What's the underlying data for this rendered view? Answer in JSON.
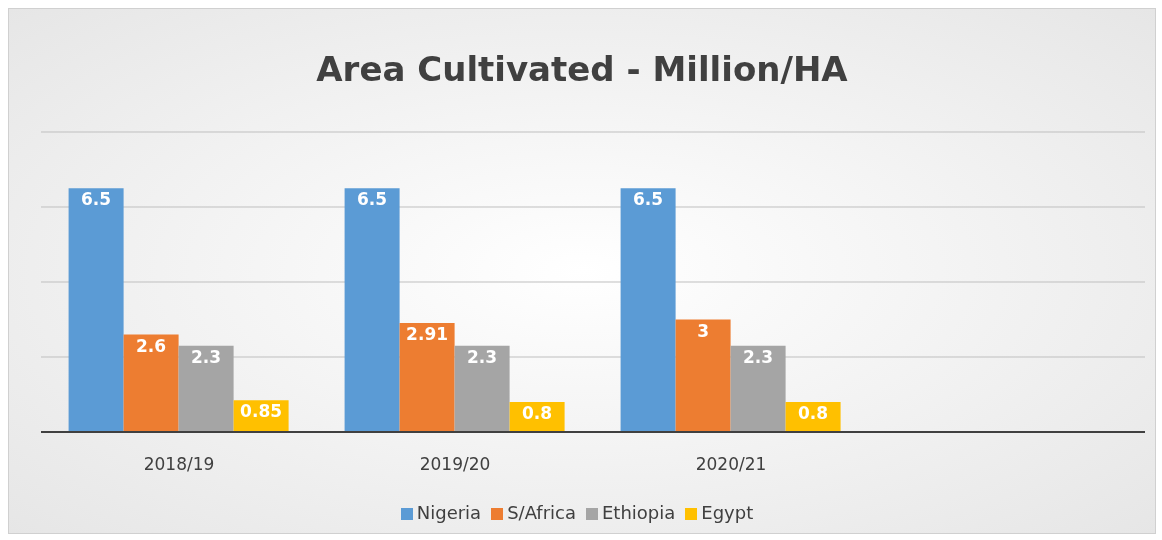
{
  "chart_data": {
    "type": "bar",
    "title": "Area Cultivated - Million/HA",
    "categories": [
      "2018/19",
      "2019/20",
      "2020/21",
      null
    ],
    "series": [
      {
        "name": "Nigeria",
        "color": "#5b9bd5",
        "values": [
          6.5,
          6.5,
          6.5,
          null
        ]
      },
      {
        "name": "S/Africa",
        "color": "#ed7d31",
        "values": [
          2.6,
          2.91,
          3,
          null
        ]
      },
      {
        "name": "Ethiopia",
        "color": "#a5a5a5",
        "values": [
          2.3,
          2.3,
          2.3,
          null
        ]
      },
      {
        "name": "Egypt",
        "color": "#ffc000",
        "values": [
          0.85,
          0.8,
          0.8,
          null
        ]
      }
    ],
    "ylim": [
      0,
      8
    ],
    "yticks": [
      {
        "value": 0,
        "label": null
      },
      {
        "value": 2,
        "label": null
      },
      {
        "value": 4,
        "label": null
      },
      {
        "value": 6,
        "label": null
      },
      {
        "value": 8,
        "label": null
      }
    ],
    "tick_labels": "x",
    "grid": "y",
    "legend": "bottom",
    "data_labels": true
  }
}
